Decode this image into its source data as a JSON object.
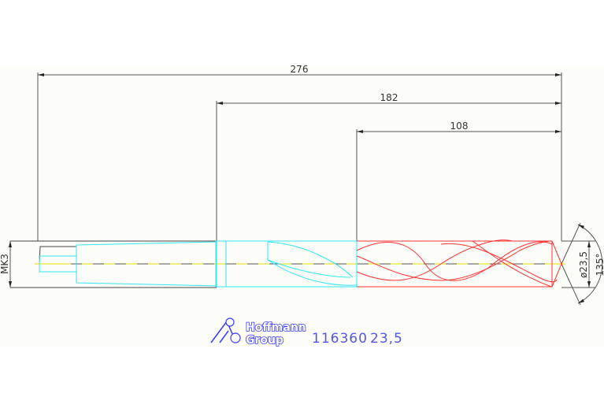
{
  "drawing": {
    "dimensions": {
      "overall_length": "276",
      "flute_length_total": "182",
      "flute_length": "108",
      "taper": "MK3",
      "diameter": "ø23,5",
      "point_angle": "135°"
    },
    "title_block": {
      "logo": "Hoffmann Group",
      "logo_line1": "Hoffmann",
      "logo_line2": "Group",
      "article_number": "116360",
      "size": "23,5"
    },
    "colors": {
      "dimension": "#333333",
      "shank": "#33e6f0",
      "flute": "#ff3333",
      "centerline": "#e8e000",
      "logo": "#3a3aff"
    }
  }
}
